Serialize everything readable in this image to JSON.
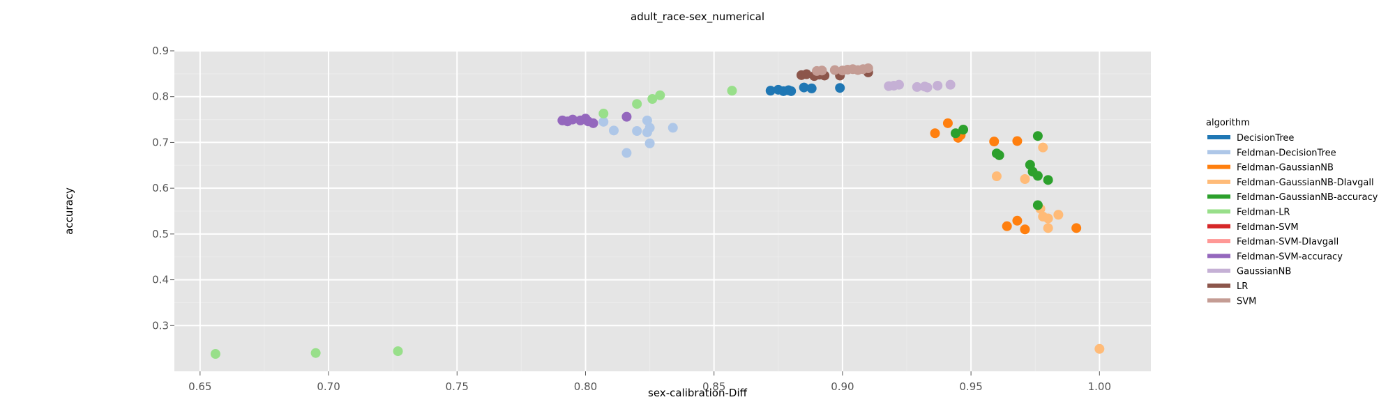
{
  "chart_data": {
    "type": "scatter",
    "title": "adult_race-sex_numerical",
    "xlabel": "sex-calibration-Diff",
    "ylabel": "accuracy",
    "xlim": [
      0.64,
      1.02
    ],
    "ylim": [
      0.2,
      0.9
    ],
    "xticks": [
      "0.65",
      "0.70",
      "0.75",
      "0.80",
      "0.85",
      "0.90",
      "0.95",
      "1.00"
    ],
    "yticks": [
      "0.3",
      "0.4",
      "0.5",
      "0.6",
      "0.7",
      "0.8",
      "0.9"
    ],
    "grid": true,
    "legend_title": "algorithm",
    "legend_position": "right",
    "series": [
      {
        "name": "DecisionTree",
        "color": "#1f77b4",
        "points": [
          [
            0.872,
            0.813
          ],
          [
            0.875,
            0.815
          ],
          [
            0.877,
            0.812
          ],
          [
            0.879,
            0.814
          ],
          [
            0.88,
            0.812
          ],
          [
            0.885,
            0.82
          ],
          [
            0.888,
            0.818
          ],
          [
            0.899,
            0.819
          ]
        ]
      },
      {
        "name": "Feldman-DecisionTree",
        "color": "#aec7e8",
        "points": [
          [
            0.807,
            0.745
          ],
          [
            0.811,
            0.726
          ],
          [
            0.816,
            0.677
          ],
          [
            0.82,
            0.725
          ],
          [
            0.824,
            0.748
          ],
          [
            0.824,
            0.722
          ],
          [
            0.825,
            0.732
          ],
          [
            0.825,
            0.698
          ],
          [
            0.834,
            0.732
          ]
        ]
      },
      {
        "name": "Feldman-GaussianNB",
        "color": "#ff7f0e",
        "points": [
          [
            0.936,
            0.72
          ],
          [
            0.941,
            0.742
          ],
          [
            0.945,
            0.71
          ],
          [
            0.946,
            0.716
          ],
          [
            0.959,
            0.702
          ],
          [
            0.964,
            0.517
          ],
          [
            0.968,
            0.529
          ],
          [
            0.968,
            0.703
          ],
          [
            0.971,
            0.51
          ],
          [
            0.991,
            0.513
          ]
        ]
      },
      {
        "name": "Feldman-GaussianNB-DIavgall",
        "color": "#ffbb78",
        "points": [
          [
            0.96,
            0.626
          ],
          [
            0.971,
            0.62
          ],
          [
            0.977,
            0.555
          ],
          [
            0.978,
            0.538
          ],
          [
            0.978,
            0.689
          ],
          [
            0.98,
            0.534
          ],
          [
            0.98,
            0.513
          ],
          [
            0.984,
            0.542
          ],
          [
            1.0,
            0.249
          ]
        ]
      },
      {
        "name": "Feldman-GaussianNB-accuracy",
        "color": "#2ca02c",
        "points": [
          [
            0.944,
            0.72
          ],
          [
            0.947,
            0.728
          ],
          [
            0.96,
            0.676
          ],
          [
            0.961,
            0.672
          ],
          [
            0.973,
            0.651
          ],
          [
            0.974,
            0.636
          ],
          [
            0.976,
            0.714
          ],
          [
            0.976,
            0.627
          ],
          [
            0.976,
            0.563
          ],
          [
            0.98,
            0.618
          ]
        ]
      },
      {
        "name": "Feldman-LR",
        "color": "#98df8a",
        "points": [
          [
            0.656,
            0.238
          ],
          [
            0.695,
            0.24
          ],
          [
            0.727,
            0.244
          ],
          [
            0.807,
            0.763
          ],
          [
            0.82,
            0.784
          ],
          [
            0.826,
            0.795
          ],
          [
            0.829,
            0.803
          ],
          [
            0.857,
            0.813
          ]
        ]
      },
      {
        "name": "Feldman-SVM",
        "color": "#d62728",
        "points": []
      },
      {
        "name": "Feldman-SVM-DIavgall",
        "color": "#ff9896",
        "points": []
      },
      {
        "name": "Feldman-SVM-accuracy",
        "color": "#9467bd",
        "points": [
          [
            0.791,
            0.748
          ],
          [
            0.793,
            0.746
          ],
          [
            0.795,
            0.75
          ],
          [
            0.798,
            0.748
          ],
          [
            0.8,
            0.752
          ],
          [
            0.801,
            0.746
          ],
          [
            0.803,
            0.742
          ],
          [
            0.816,
            0.756
          ]
        ]
      },
      {
        "name": "GaussianNB",
        "color": "#c5b0d5",
        "points": [
          [
            0.918,
            0.823
          ],
          [
            0.92,
            0.824
          ],
          [
            0.922,
            0.826
          ],
          [
            0.929,
            0.821
          ],
          [
            0.932,
            0.822
          ],
          [
            0.933,
            0.82
          ],
          [
            0.937,
            0.824
          ],
          [
            0.942,
            0.826
          ]
        ]
      },
      {
        "name": "LR",
        "color": "#8c564b",
        "points": [
          [
            0.884,
            0.847
          ],
          [
            0.886,
            0.849
          ],
          [
            0.889,
            0.845
          ],
          [
            0.891,
            0.848
          ],
          [
            0.893,
            0.846
          ],
          [
            0.899,
            0.846
          ],
          [
            0.91,
            0.853
          ]
        ]
      },
      {
        "name": "SVM",
        "color": "#c49c94",
        "points": [
          [
            0.89,
            0.856
          ],
          [
            0.892,
            0.857
          ],
          [
            0.897,
            0.858
          ],
          [
            0.9,
            0.857
          ],
          [
            0.902,
            0.859
          ],
          [
            0.904,
            0.86
          ],
          [
            0.906,
            0.858
          ],
          [
            0.908,
            0.86
          ],
          [
            0.91,
            0.862
          ]
        ]
      }
    ]
  }
}
